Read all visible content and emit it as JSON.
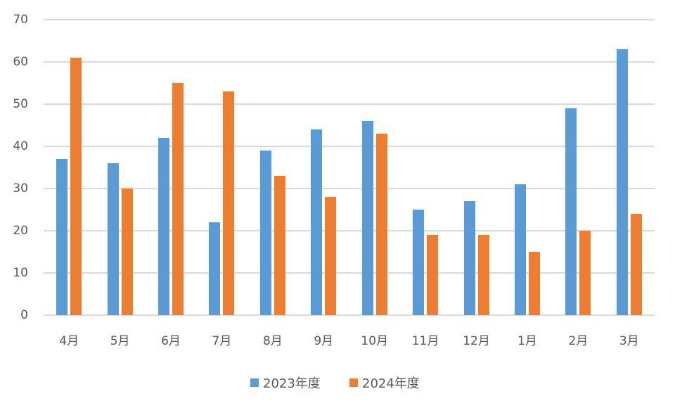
{
  "chart_data": {
    "type": "bar",
    "title": "",
    "xlabel": "",
    "ylabel": "",
    "ylim": [
      0,
      70
    ],
    "yticks": [
      0,
      10,
      20,
      30,
      40,
      50,
      60,
      70
    ],
    "grid": true,
    "legend_position": "bottom",
    "categories": [
      "4月",
      "5月",
      "6月",
      "7月",
      "8月",
      "9月",
      "10月",
      "11月",
      "12月",
      "1月",
      "2月",
      "3月"
    ],
    "series": [
      {
        "name": "2023年度",
        "color": "#5b9bd5",
        "values": [
          37,
          36,
          42,
          22,
          39,
          44,
          46,
          25,
          27,
          31,
          49,
          63
        ]
      },
      {
        "name": "2024年度",
        "color": "#ed7d31",
        "values": [
          61,
          30,
          55,
          53,
          33,
          28,
          43,
          19,
          19,
          15,
          20,
          24
        ]
      }
    ]
  },
  "legend": {
    "items": [
      {
        "label": "2023年度",
        "color": "#5b9bd5"
      },
      {
        "label": "2024年度",
        "color": "#ed7d31"
      }
    ]
  }
}
